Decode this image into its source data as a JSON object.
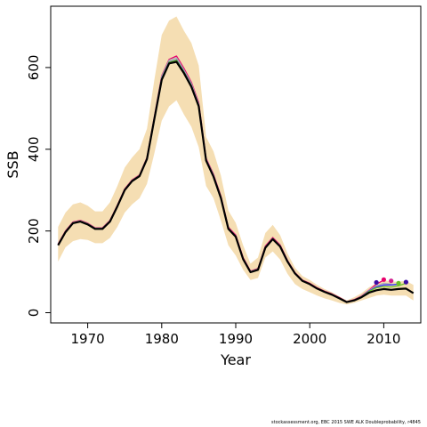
{
  "chart_data": {
    "type": "line",
    "xlabel": "Year",
    "ylabel": "SSB",
    "xlim": [
      1965,
      2015
    ],
    "ylim": [
      -25,
      750
    ],
    "x_ticks": [
      1970,
      1980,
      1990,
      2000,
      2010
    ],
    "y_ticks": [
      0,
      200,
      400,
      600
    ],
    "grid": false,
    "band": {
      "color": "#f5deb3",
      "x": [
        1966,
        1967,
        1968,
        1969,
        1970,
        1971,
        1972,
        1973,
        1974,
        1975,
        1976,
        1977,
        1978,
        1979,
        1980,
        1981,
        1982,
        1983,
        1984,
        1985,
        1986,
        1987,
        1988,
        1989,
        1990,
        1991,
        1992,
        1993,
        1994,
        1995,
        1996,
        1997,
        1998,
        1999,
        2000,
        2001,
        2002,
        2003,
        2004,
        2005,
        2006,
        2007,
        2008,
        2009,
        2010,
        2011,
        2012,
        2013,
        2014
      ],
      "upper": [
        210,
        245,
        265,
        270,
        262,
        248,
        248,
        270,
        310,
        355,
        380,
        400,
        450,
        570,
        680,
        715,
        725,
        690,
        660,
        605,
        430,
        395,
        335,
        250,
        220,
        165,
        120,
        135,
        195,
        215,
        190,
        145,
        110,
        90,
        80,
        68,
        58,
        50,
        40,
        30,
        38,
        48,
        62,
        72,
        80,
        76,
        76,
        78,
        68
      ],
      "lower": [
        125,
        160,
        175,
        180,
        178,
        170,
        170,
        183,
        210,
        245,
        265,
        280,
        315,
        390,
        470,
        505,
        520,
        485,
        455,
        405,
        310,
        280,
        225,
        165,
        140,
        105,
        80,
        85,
        135,
        150,
        130,
        95,
        70,
        58,
        50,
        42,
        35,
        30,
        24,
        20,
        24,
        30,
        36,
        42,
        44,
        42,
        42,
        42,
        30
      ]
    },
    "series": [
      {
        "color": "#e8006c",
        "x": [
          1966,
          1967,
          1968,
          1969,
          1970,
          1971,
          1972,
          1973,
          1974,
          1975,
          1976,
          1977,
          1978,
          1979,
          1980,
          1981,
          1982,
          1983,
          1984,
          1985,
          1986,
          1987,
          1988,
          1989,
          1990,
          1991,
          1992,
          1993,
          1994,
          1995,
          1996,
          1997,
          1998,
          1999,
          2000,
          2001,
          2002,
          2003,
          2004,
          2005,
          2006,
          2007,
          2008,
          2009,
          2010
        ],
        "y": [
          168,
          200,
          222,
          226,
          219,
          208,
          208,
          226,
          263,
          303,
          325,
          337,
          380,
          480,
          580,
          620,
          628,
          598,
          564,
          514,
          378,
          339,
          285,
          209,
          190,
          135,
          102,
          108,
          163,
          184,
          166,
          128,
          98,
          80,
          72,
          61,
          53,
          46,
          37,
          27,
          32,
          41,
          55,
          70,
          80
        ]
      },
      {
        "color": "#b0b0b0",
        "x": [
          1966,
          1967,
          1968,
          1969,
          1970,
          1971,
          1972,
          1973,
          1974,
          1975,
          1976,
          1977,
          1978,
          1979,
          1980,
          1981,
          1982,
          1983,
          1984,
          1985,
          1986,
          1987,
          1988,
          1989,
          1990,
          1991,
          1992,
          1993,
          1994,
          1995,
          1996,
          1997,
          1998,
          1999,
          2000,
          2001,
          2002,
          2003,
          2004,
          2005,
          2006,
          2007,
          2008,
          2009,
          2010,
          2011
        ],
        "y": [
          167,
          199,
          221,
          225,
          218,
          207,
          207,
          225,
          262,
          302,
          324,
          336,
          379,
          479,
          578,
          618,
          624,
          594,
          561,
          511,
          376,
          337,
          283,
          207,
          188,
          133,
          101,
          107,
          161,
          182,
          164,
          127,
          97,
          79,
          71,
          60,
          52,
          45,
          36,
          27,
          31,
          40,
          54,
          66,
          72,
          70
        ]
      },
      {
        "color": "#2a2aff",
        "x": [
          1966,
          1967,
          1968,
          1969,
          1970,
          1971,
          1972,
          1973,
          1974,
          1975,
          1976,
          1977,
          1978,
          1979,
          1980,
          1981,
          1982,
          1983,
          1984,
          1985,
          1986,
          1987,
          1988,
          1989,
          1990,
          1991,
          1992,
          1993,
          1994,
          1995,
          1996,
          1997,
          1998,
          1999,
          2000,
          2001,
          2002,
          2003,
          2004,
          2005,
          2006,
          2007,
          2008,
          2009,
          2010,
          2011,
          2012
        ],
        "y": [
          166,
          198,
          220,
          224,
          217,
          206,
          206,
          224,
          261,
          301,
          323,
          335,
          377,
          476,
          574,
          614,
          619,
          590,
          557,
          508,
          374,
          335,
          281,
          206,
          187,
          132,
          100,
          106,
          160,
          181,
          163,
          126,
          96,
          78,
          70,
          59,
          51,
          44,
          36,
          26,
          31,
          39,
          53,
          63,
          68,
          68,
          70
        ]
      },
      {
        "color": "#6abf2a",
        "x": [
          1966,
          1967,
          1968,
          1969,
          1970,
          1971,
          1972,
          1973,
          1974,
          1975,
          1976,
          1977,
          1978,
          1979,
          1980,
          1981,
          1982,
          1983,
          1984,
          1985,
          1986,
          1987,
          1988,
          1989,
          1990,
          1991,
          1992,
          1993,
          1994,
          1995,
          1996,
          1997,
          1998,
          1999,
          2000,
          2001,
          2002,
          2003,
          2004,
          2005,
          2006,
          2007,
          2008,
          2009,
          2010,
          2011,
          2012,
          2013
        ],
        "y": [
          166,
          198,
          220,
          224,
          217,
          206,
          206,
          224,
          261,
          301,
          323,
          335,
          377,
          476,
          573,
          613,
          618,
          589,
          556,
          507,
          373,
          334,
          281,
          205,
          187,
          132,
          100,
          106,
          160,
          181,
          163,
          126,
          96,
          78,
          70,
          59,
          51,
          44,
          35,
          26,
          31,
          39,
          52,
          61,
          64,
          63,
          66,
          72
        ]
      },
      {
        "color": "#000000",
        "x": [
          1966,
          1967,
          1968,
          1969,
          1970,
          1971,
          1972,
          1973,
          1974,
          1975,
          1976,
          1977,
          1978,
          1979,
          1980,
          1981,
          1982,
          1983,
          1984,
          1985,
          1986,
          1987,
          1988,
          1989,
          1990,
          1991,
          1992,
          1993,
          1994,
          1995,
          1996,
          1997,
          1998,
          1999,
          2000,
          2001,
          2002,
          2003,
          2004,
          2005,
          2006,
          2007,
          2008,
          2009,
          2010,
          2011,
          2012,
          2013,
          2014
        ],
        "y": [
          165,
          197,
          219,
          223,
          216,
          205,
          205,
          223,
          260,
          300,
          322,
          334,
          376,
          474,
          570,
          610,
          614,
          586,
          553,
          505,
          372,
          333,
          280,
          205,
          186,
          131,
          99,
          105,
          159,
          180,
          162,
          125,
          96,
          78,
          70,
          59,
          51,
          44,
          35,
          26,
          30,
          38,
          49,
          55,
          58,
          56,
          58,
          59,
          48
        ]
      }
    ],
    "end_points": [
      {
        "x": 2009,
        "y": 74,
        "color": "#3a0ca3"
      },
      {
        "x": 2010,
        "y": 81,
        "color": "#e8006c"
      },
      {
        "x": 2011,
        "y": 78,
        "color": "#d02090"
      },
      {
        "x": 2012,
        "y": 72,
        "color": "#6abf2a"
      },
      {
        "x": 2013,
        "y": 75,
        "color": "#3a0ca3"
      }
    ]
  },
  "footnote": "stockassessment.org, EBC 2015 SWE ALK Doubleprobability, r4845"
}
